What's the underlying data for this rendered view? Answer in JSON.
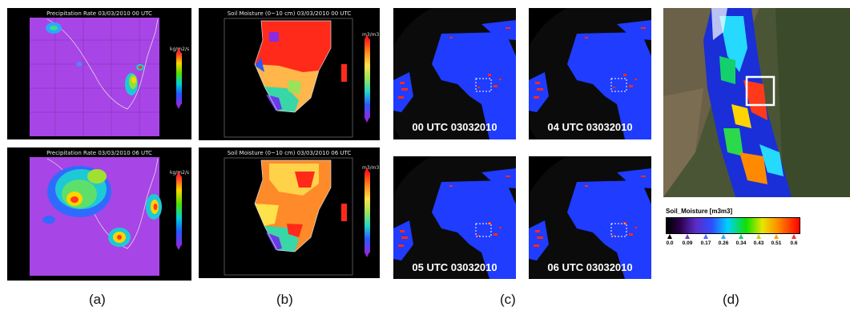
{
  "panel_a": {
    "label": "(a)",
    "top_title": "Precipitation Rate 03/03/2010 00 UTC",
    "bottom_title": "Precipitation Rate 03/03/2010 06 UTC",
    "unit": "kg/m2/s"
  },
  "panel_b": {
    "label": "(b)",
    "top_title": "Soil Moisture (0~10 cm) 03/03/2010 00 UTC",
    "bottom_title": "Soil Moisture (0~10 cm) 03/03/2010 06 UTC",
    "unit": "m3/m3"
  },
  "panel_c": {
    "label": "(c)",
    "captions": [
      "00 UTC 03032010",
      "04 UTC 03032010",
      "05 UTC 03032010",
      "06 UTC 03032010"
    ]
  },
  "panel_d": {
    "label": "(d)",
    "legend_title": "Soil_Moisture [m3m3]",
    "ticks": [
      "0.0",
      "0.09",
      "0.17",
      "0.26",
      "0.34",
      "0.43",
      "0.51",
      "0.6"
    ],
    "tick_colors": [
      "#000000",
      "#7b3fbf",
      "#5866ff",
      "#2ab0ff",
      "#14d06c",
      "#c8d400",
      "#ff9d00",
      "#ff3030"
    ]
  },
  "colors": {
    "precip_bg": "#a845e6",
    "globe_ocean": "#1f3cff",
    "land_red": "#ff2a1a"
  }
}
